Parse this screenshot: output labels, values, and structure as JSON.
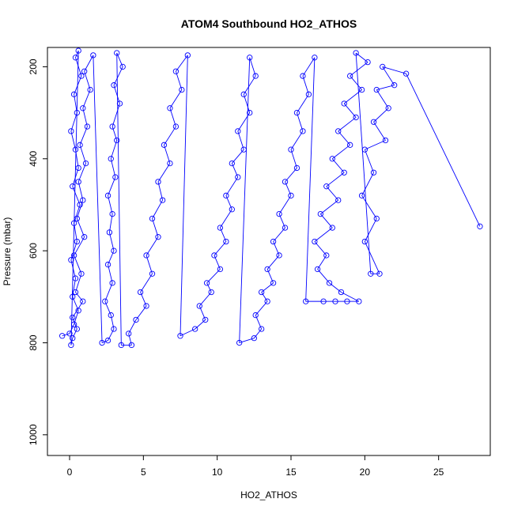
{
  "chart_data": {
    "type": "scatter",
    "title": "ATOM4 Southbound HO2_ATHOS",
    "xlabel": "HO2_ATHOS",
    "ylabel": "Pressure (mbar)",
    "xlim": [
      -1.5,
      28.5
    ],
    "ylim": [
      1045,
      158
    ],
    "y_reversed": true,
    "x_ticks": [
      0,
      5,
      10,
      15,
      20,
      25
    ],
    "y_ticks": [
      200,
      400,
      600,
      800,
      1000
    ],
    "grid": false,
    "legend": "none",
    "series_color": "#0000ff",
    "marker": "open-circle",
    "line": true,
    "points": [
      [
        -0.5,
        785
      ],
      [
        0,
        780
      ],
      [
        0.3,
        760
      ],
      [
        0.6,
        730
      ],
      [
        0.2,
        700
      ],
      [
        0.4,
        660
      ],
      [
        0.1,
        620
      ],
      [
        0.5,
        580
      ],
      [
        0.3,
        540
      ],
      [
        0.7,
        500
      ],
      [
        0.2,
        460
      ],
      [
        0.6,
        420
      ],
      [
        0.4,
        380
      ],
      [
        0.1,
        340
      ],
      [
        0.5,
        300
      ],
      [
        0.3,
        260
      ],
      [
        0.8,
        220
      ],
      [
        0.4,
        180
      ],
      [
        0.6,
        165
      ],
      [
        0.1,
        805
      ],
      [
        0.2,
        790
      ],
      [
        0.5,
        770
      ],
      [
        0.2,
        745
      ],
      [
        0.9,
        710
      ],
      [
        0.4,
        690
      ],
      [
        0.8,
        650
      ],
      [
        0.3,
        610
      ],
      [
        1.0,
        570
      ],
      [
        0.5,
        530
      ],
      [
        0.9,
        490
      ],
      [
        0.6,
        450
      ],
      [
        1.1,
        410
      ],
      [
        0.7,
        370
      ],
      [
        1.2,
        330
      ],
      [
        0.9,
        290
      ],
      [
        1.4,
        250
      ],
      [
        1.0,
        210
      ],
      [
        1.6,
        175
      ],
      [
        2.2,
        800
      ],
      [
        2.6,
        795
      ],
      [
        3.0,
        770
      ],
      [
        2.8,
        740
      ],
      [
        2.4,
        710
      ],
      [
        2.9,
        670
      ],
      [
        2.6,
        630
      ],
      [
        3.0,
        600
      ],
      [
        2.7,
        560
      ],
      [
        2.9,
        520
      ],
      [
        2.6,
        480
      ],
      [
        3.1,
        440
      ],
      [
        2.8,
        400
      ],
      [
        3.2,
        360
      ],
      [
        2.9,
        330
      ],
      [
        3.4,
        280
      ],
      [
        3.0,
        240
      ],
      [
        3.6,
        200
      ],
      [
        3.2,
        170
      ],
      [
        3.5,
        805
      ],
      [
        4.2,
        805
      ],
      [
        4.0,
        780
      ],
      [
        4.5,
        750
      ],
      [
        5.2,
        720
      ],
      [
        4.8,
        690
      ],
      [
        5.6,
        650
      ],
      [
        5.2,
        610
      ],
      [
        6.0,
        570
      ],
      [
        5.6,
        530
      ],
      [
        6.3,
        490
      ],
      [
        6.0,
        450
      ],
      [
        6.8,
        410
      ],
      [
        6.4,
        370
      ],
      [
        7.2,
        330
      ],
      [
        6.8,
        290
      ],
      [
        7.6,
        250
      ],
      [
        7.2,
        210
      ],
      [
        8.0,
        175
      ],
      [
        7.5,
        785
      ],
      [
        8.5,
        770
      ],
      [
        9.2,
        750
      ],
      [
        8.8,
        720
      ],
      [
        9.6,
        690
      ],
      [
        9.3,
        670
      ],
      [
        10.2,
        640
      ],
      [
        9.8,
        610
      ],
      [
        10.6,
        580
      ],
      [
        10.2,
        550
      ],
      [
        11.0,
        510
      ],
      [
        10.6,
        480
      ],
      [
        11.4,
        440
      ],
      [
        11.0,
        410
      ],
      [
        11.8,
        380
      ],
      [
        11.4,
        340
      ],
      [
        12.2,
        300
      ],
      [
        11.8,
        260
      ],
      [
        12.6,
        220
      ],
      [
        12.2,
        180
      ],
      [
        11.5,
        800
      ],
      [
        12.5,
        790
      ],
      [
        13.0,
        770
      ],
      [
        12.6,
        740
      ],
      [
        13.4,
        710
      ],
      [
        13.0,
        690
      ],
      [
        13.8,
        670
      ],
      [
        13.4,
        640
      ],
      [
        14.2,
        610
      ],
      [
        13.8,
        580
      ],
      [
        14.6,
        550
      ],
      [
        14.2,
        520
      ],
      [
        15.0,
        480
      ],
      [
        14.6,
        450
      ],
      [
        15.4,
        420
      ],
      [
        15.0,
        380
      ],
      [
        15.8,
        340
      ],
      [
        15.4,
        300
      ],
      [
        16.2,
        260
      ],
      [
        15.8,
        220
      ],
      [
        16.6,
        180
      ],
      [
        16.0,
        710
      ],
      [
        17.2,
        710
      ],
      [
        18.0,
        710
      ],
      [
        18.8,
        710
      ],
      [
        19.6,
        710
      ],
      [
        18.4,
        690
      ],
      [
        17.6,
        670
      ],
      [
        16.8,
        640
      ],
      [
        17.4,
        610
      ],
      [
        16.6,
        580
      ],
      [
        17.8,
        550
      ],
      [
        17.0,
        520
      ],
      [
        18.2,
        490
      ],
      [
        17.4,
        460
      ],
      [
        18.6,
        430
      ],
      [
        17.8,
        400
      ],
      [
        19.0,
        370
      ],
      [
        18.2,
        340
      ],
      [
        19.4,
        310
      ],
      [
        18.6,
        280
      ],
      [
        19.8,
        250
      ],
      [
        19.0,
        220
      ],
      [
        20.2,
        190
      ],
      [
        19.4,
        170
      ],
      [
        20.4,
        650
      ],
      [
        21.0,
        650
      ],
      [
        20.0,
        580
      ],
      [
        20.8,
        530
      ],
      [
        19.8,
        480
      ],
      [
        20.6,
        430
      ],
      [
        20.0,
        380
      ],
      [
        21.4,
        360
      ],
      [
        20.6,
        320
      ],
      [
        21.6,
        290
      ],
      [
        20.8,
        250
      ],
      [
        22.0,
        240
      ],
      [
        21.2,
        200
      ],
      [
        22.8,
        215
      ],
      [
        27.8,
        547
      ]
    ]
  }
}
